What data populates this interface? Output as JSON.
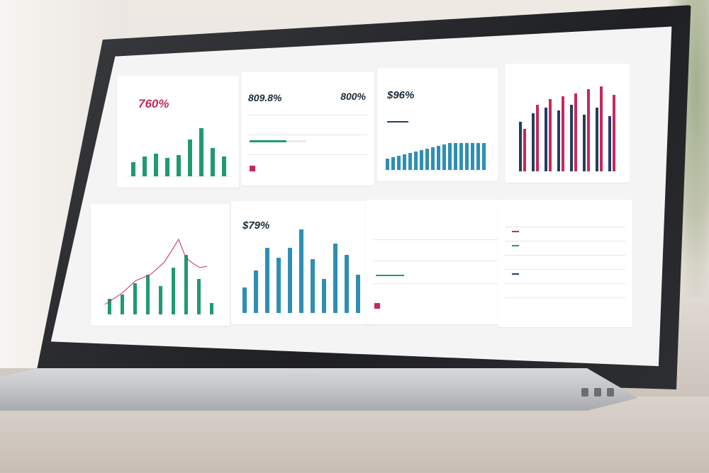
{
  "panels": {
    "p1": {
      "title": "",
      "value": "760%"
    },
    "p2": {
      "title": "",
      "value_left": "809.8%",
      "value_right": "800%",
      "rows": [
        {
          "left": "",
          "right": ""
        },
        {
          "left": "",
          "right": ""
        },
        {
          "left": "",
          "right": ""
        }
      ],
      "footer_right": ""
    },
    "p3": {
      "title": "",
      "value": "$96%"
    },
    "p4": {
      "title": "",
      "value": ""
    },
    "p5": {
      "title": "",
      "value": ""
    },
    "p6": {
      "title": "",
      "value": "$79%"
    },
    "p7": {
      "title": "",
      "value_left": "",
      "value_right": ""
    },
    "p8": {
      "title": ""
    }
  },
  "colors": {
    "green": "#1f9a72",
    "blue": "#2e8fb3",
    "navy": "#243e62",
    "crimson": "#c8285a"
  }
}
